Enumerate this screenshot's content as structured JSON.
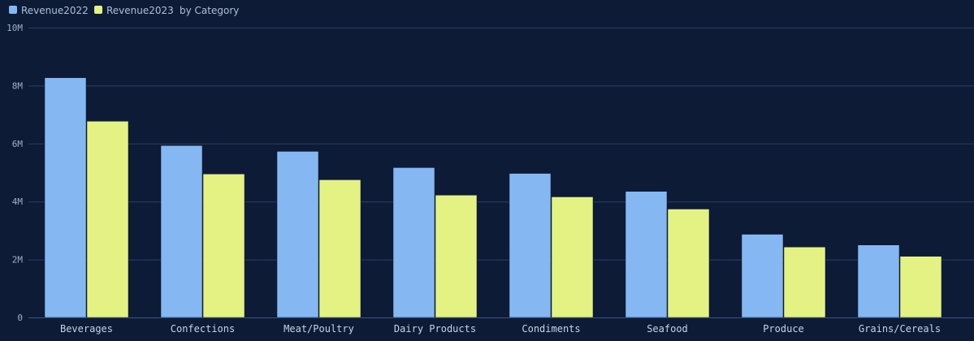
{
  "chart_data": {
    "type": "bar",
    "title": "",
    "legend_suffix": "by Category",
    "legend_position": "top-left",
    "grid": true,
    "xlabel": "",
    "ylabel": "",
    "ylim": [
      0,
      10000000
    ],
    "yticks": [
      0,
      2000000,
      4000000,
      6000000,
      8000000,
      10000000
    ],
    "ytick_labels": [
      "0",
      "2M",
      "4M",
      "6M",
      "8M",
      "10M"
    ],
    "categories": [
      "Beverages",
      "Confections",
      "Meat/Poultry",
      "Dairy Products",
      "Condiments",
      "Seafood",
      "Produce",
      "Grains/Cereals"
    ],
    "series": [
      {
        "name": "Revenue2022",
        "color": "#85b8f2",
        "values": [
          8270000,
          5930000,
          5730000,
          5170000,
          4970000,
          4350000,
          2870000,
          2500000
        ]
      },
      {
        "name": "Revenue2023",
        "color": "#e4f283",
        "values": [
          6770000,
          4950000,
          4750000,
          4220000,
          4160000,
          3740000,
          2430000,
          2110000
        ]
      }
    ],
    "background": "#0e1b36",
    "grid_color": "#2a3f66"
  }
}
